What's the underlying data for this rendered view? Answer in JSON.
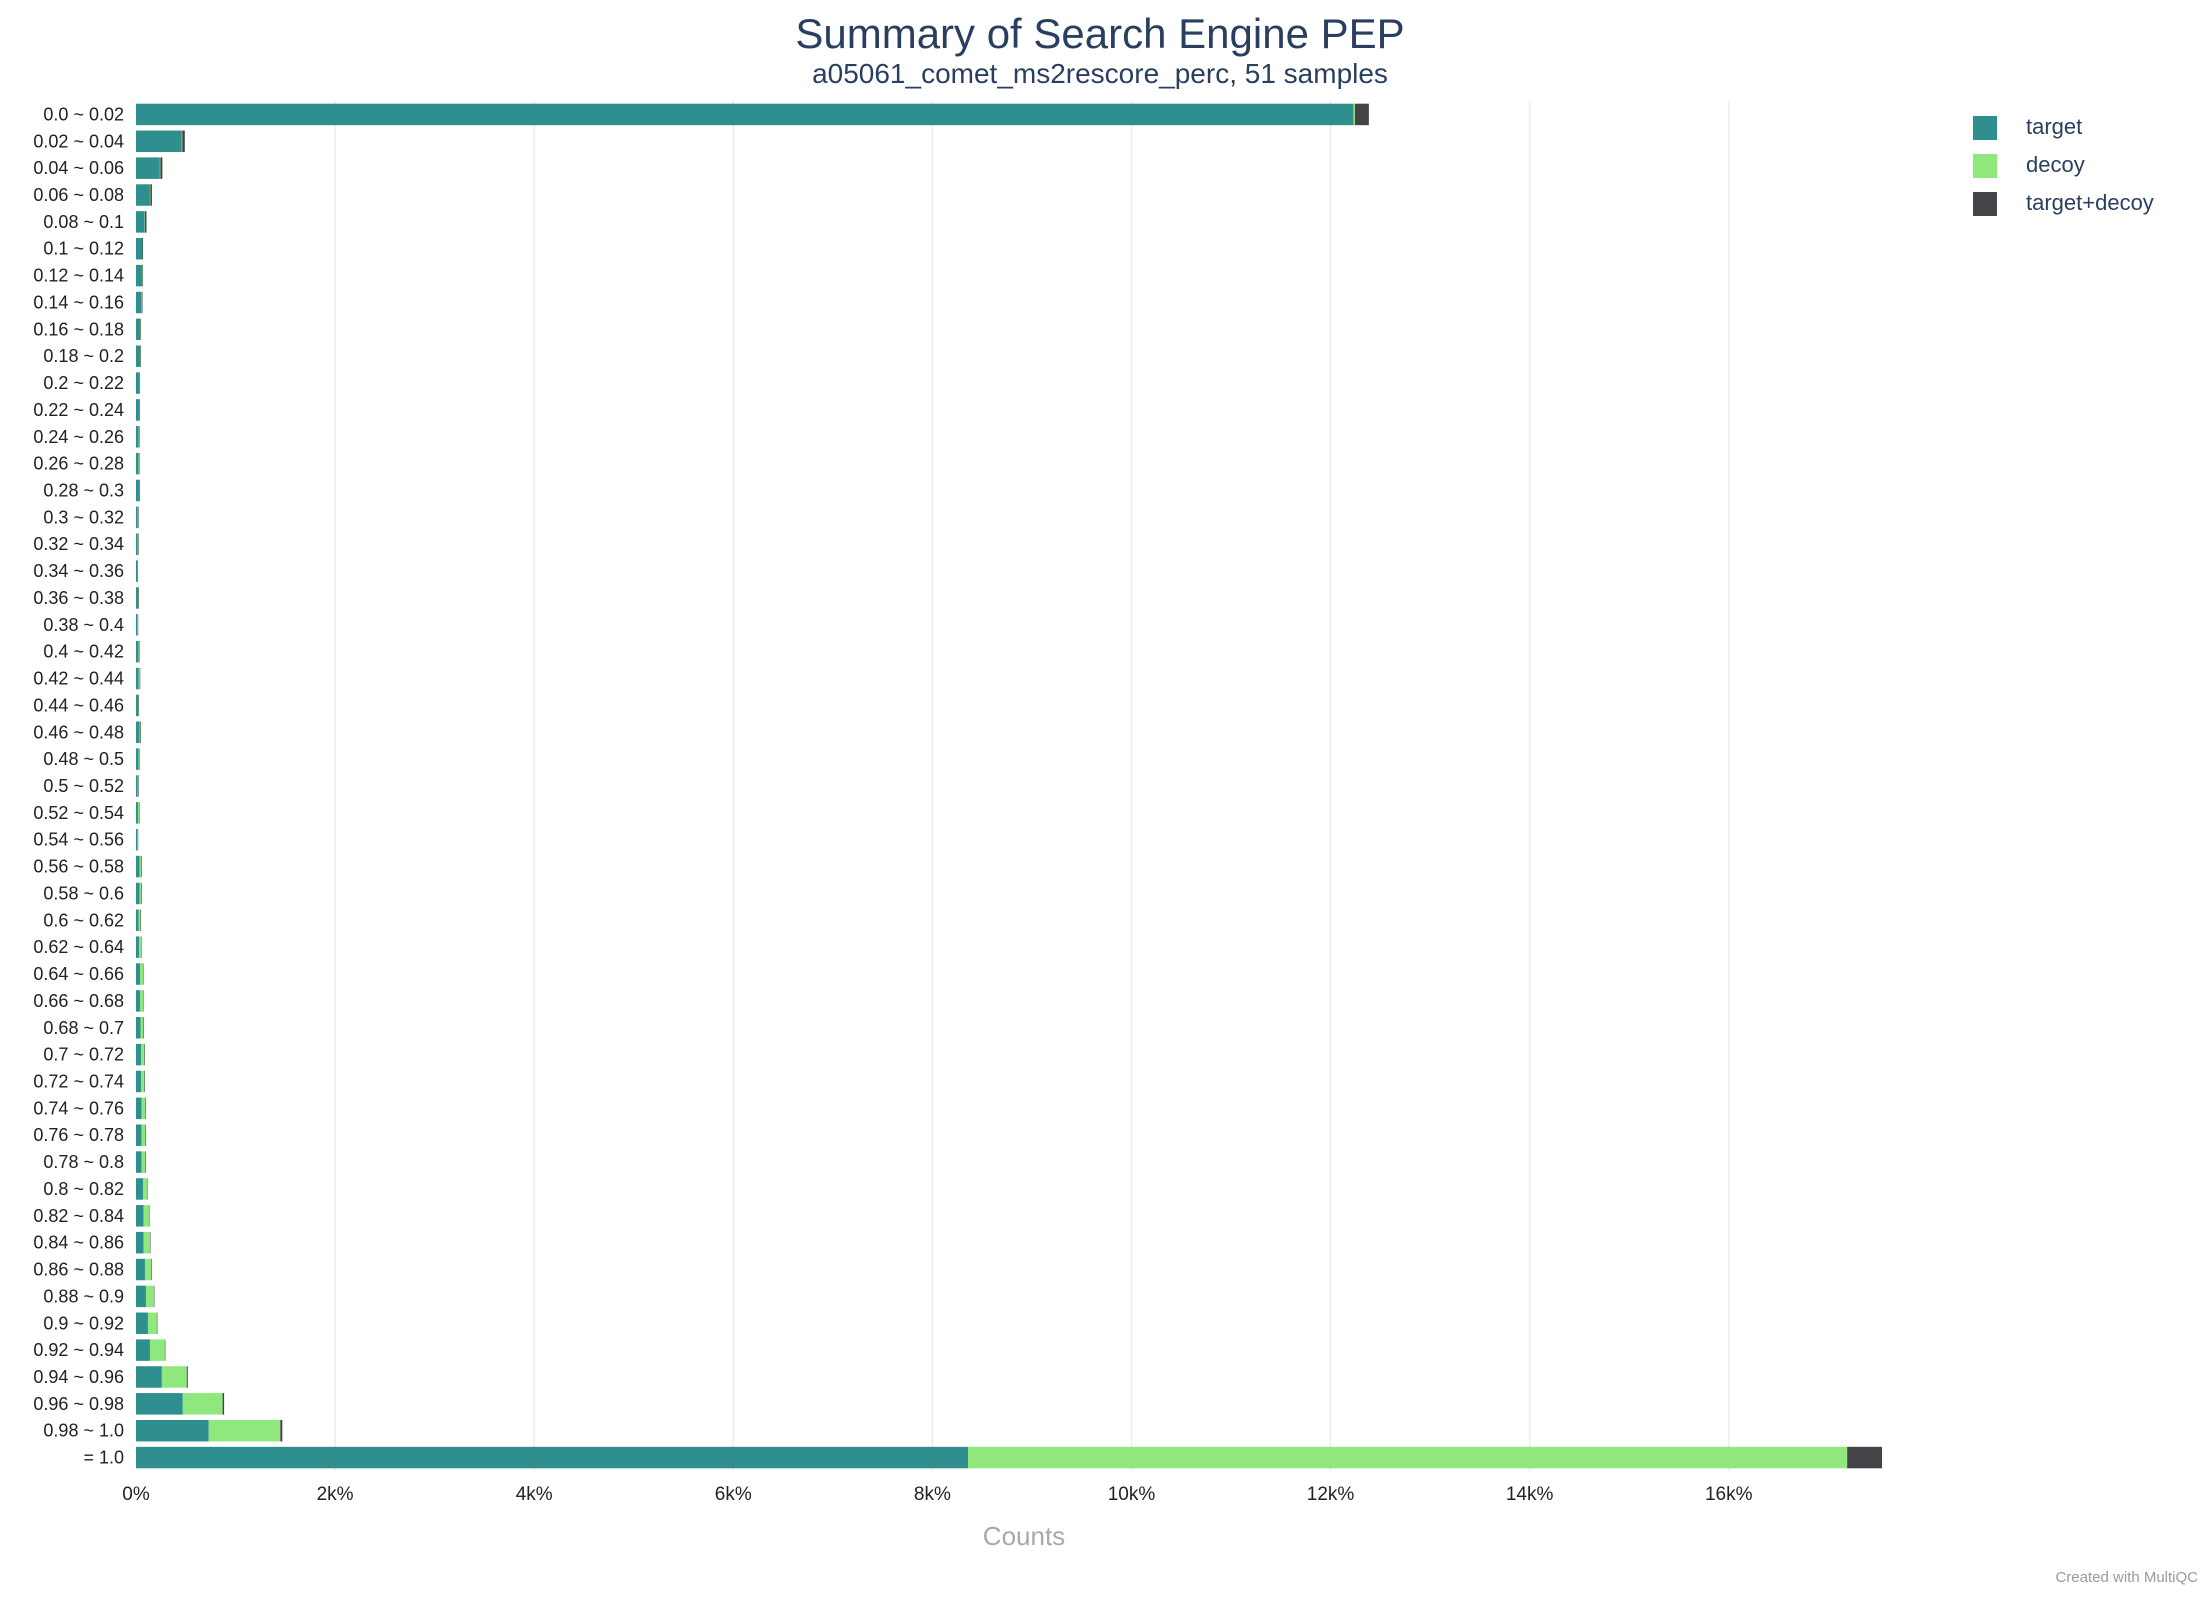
{
  "title": "Summary of Search Engine PEP",
  "subtitle": "a05061_comet_ms2rescore_perc, 51 samples",
  "footer": "Created with MultiQC",
  "chart_data": {
    "type": "bar",
    "orientation": "horizontal",
    "stacked": true,
    "categories": [
      "0.0 ~ 0.02",
      "0.02 ~ 0.04",
      "0.04 ~ 0.06",
      "0.06 ~ 0.08",
      "0.08 ~ 0.1",
      "0.1 ~ 0.12",
      "0.12 ~ 0.14",
      "0.14 ~ 0.16",
      "0.16 ~ 0.18",
      "0.18 ~ 0.2",
      "0.2 ~ 0.22",
      "0.22 ~ 0.24",
      "0.24 ~ 0.26",
      "0.26 ~ 0.28",
      "0.28 ~ 0.3",
      "0.3 ~ 0.32",
      "0.32 ~ 0.34",
      "0.34 ~ 0.36",
      "0.36 ~ 0.38",
      "0.38 ~ 0.4",
      "0.4 ~ 0.42",
      "0.42 ~ 0.44",
      "0.44 ~ 0.46",
      "0.46 ~ 0.48",
      "0.48 ~ 0.5",
      "0.5 ~ 0.52",
      "0.52 ~ 0.54",
      "0.54 ~ 0.56",
      "0.56 ~ 0.58",
      "0.58 ~ 0.6",
      "0.6 ~ 0.62",
      "0.62 ~ 0.64",
      "0.64 ~ 0.66",
      "0.66 ~ 0.68",
      "0.68 ~ 0.7",
      "0.7 ~ 0.72",
      "0.72 ~ 0.74",
      "0.74 ~ 0.76",
      "0.76 ~ 0.78",
      "0.78 ~ 0.8",
      "0.8 ~ 0.82",
      "0.82 ~ 0.84",
      "0.84 ~ 0.86",
      "0.86 ~ 0.88",
      "0.88 ~ 0.9",
      "0.9 ~ 0.92",
      "0.92 ~ 0.94",
      "0.94 ~ 0.96",
      "0.96 ~ 0.98",
      "0.98 ~ 1.0",
      "= 1.0"
    ],
    "series": [
      {
        "name": "target",
        "color": "#2e8f8e",
        "values": [
          12230,
          460,
          240,
          140,
          85,
          65,
          60,
          55,
          40,
          40,
          30,
          30,
          28,
          25,
          30,
          18,
          18,
          10,
          20,
          12,
          25,
          28,
          20,
          35,
          25,
          18,
          20,
          12,
          35,
          35,
          25,
          30,
          40,
          40,
          45,
          50,
          50,
          55,
          55,
          55,
          70,
          75,
          75,
          90,
          100,
          120,
          140,
          260,
          470,
          730,
          8360
        ]
      },
      {
        "name": "decoy",
        "color": "#90e77e",
        "values": [
          15,
          5,
          5,
          5,
          5,
          0,
          5,
          5,
          5,
          5,
          5,
          5,
          5,
          5,
          5,
          5,
          5,
          5,
          5,
          5,
          5,
          10,
          5,
          10,
          5,
          5,
          10,
          5,
          20,
          20,
          20,
          20,
          30,
          30,
          30,
          35,
          35,
          40,
          40,
          40,
          40,
          55,
          65,
          65,
          80,
          90,
          150,
          250,
          400,
          720,
          8830
        ]
      },
      {
        "name": "target+decoy",
        "color": "#434348",
        "values": [
          140,
          25,
          20,
          15,
          15,
          5,
          5,
          5,
          5,
          5,
          5,
          5,
          5,
          5,
          5,
          5,
          5,
          5,
          5,
          5,
          5,
          5,
          5,
          5,
          5,
          5,
          5,
          5,
          5,
          5,
          5,
          5,
          5,
          5,
          5,
          5,
          5,
          5,
          5,
          5,
          5,
          5,
          5,
          5,
          5,
          5,
          5,
          10,
          15,
          20,
          350
        ]
      }
    ],
    "x_axis": {
      "title": "Counts",
      "range": [
        0,
        17600
      ],
      "ticks": [
        0,
        2000,
        4000,
        6000,
        8000,
        10000,
        12000,
        14000,
        16000
      ],
      "tick_labels": [
        "0%",
        "2k%",
        "4k%",
        "6k%",
        "8k%",
        "10k%",
        "12k%",
        "14k%",
        "16k%"
      ]
    },
    "grid": "vertical",
    "legend_position": "top-right"
  }
}
